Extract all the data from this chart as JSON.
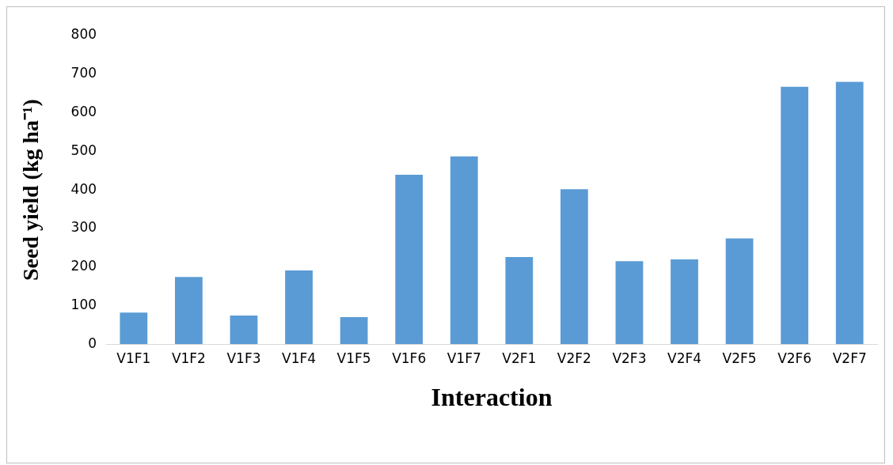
{
  "chart_data": {
    "type": "bar",
    "xlabel": "Interaction",
    "ylabel": "Seed yield (kg ha⁻¹)",
    "categories": [
      "V1F1",
      "V1F2",
      "V1F3",
      "V1F4",
      "V1F5",
      "V1F6",
      "V1F7",
      "V2F1",
      "V2F2",
      "V2F3",
      "V2F4",
      "V2F5",
      "V2F6",
      "V2F7"
    ],
    "values": [
      82,
      174,
      74,
      191,
      70,
      439,
      487,
      226,
      402,
      215,
      220,
      274,
      667,
      680
    ],
    "color": "#5b9bd5",
    "ylim": [
      0,
      800
    ],
    "yticks": [
      0,
      100,
      200,
      300,
      400,
      500,
      600,
      700,
      800
    ],
    "grid": false,
    "legend": false
  }
}
